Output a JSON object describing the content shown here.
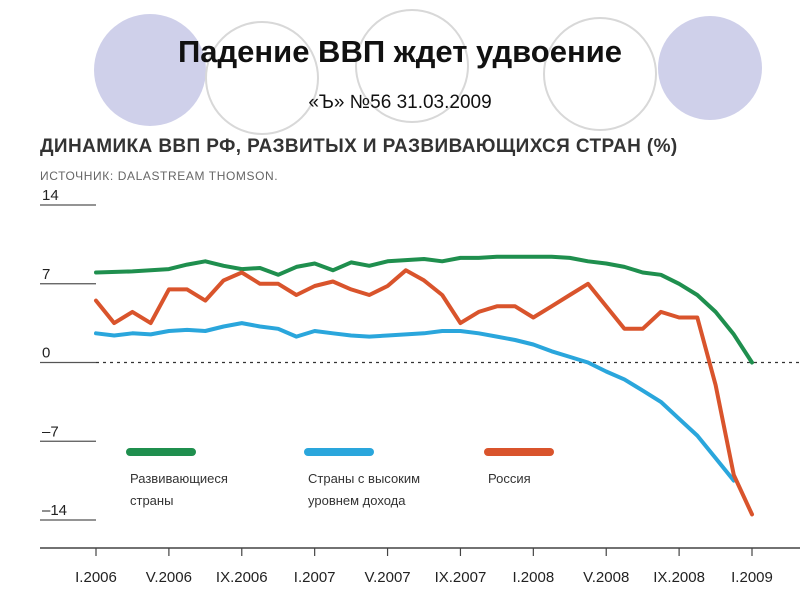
{
  "slide": {
    "title": "Падение ВВП ждет удвоение",
    "subtitle": "«Ъ» №56 31.03.2009"
  },
  "colors": {
    "developing": "#1f8f4e",
    "high_income": "#2aa6dc",
    "russia": "#d9542c",
    "decor_circle": "#cfd0ea"
  },
  "chart_data": {
    "type": "line",
    "title": "ДИНАМИКА ВВП РФ, РАЗВИТЫХ И РАЗВИВАЮЩИХСЯ СТРАН (%)",
    "source": "ИСТОЧНИК: DALASTREAM THOMSON.",
    "x_ticks": [
      "I.2006",
      "V.2006",
      "IX.2006",
      "I.2007",
      "V.2007",
      "IX.2007",
      "I.2008",
      "V.2008",
      "IX.2008",
      "I.2009"
    ],
    "x_range": [
      0,
      36
    ],
    "y_ticks": [
      "14",
      "7",
      "0",
      "–7",
      "–14"
    ],
    "ylim": [
      -14,
      14
    ],
    "zero_line": "dashed",
    "grid": false,
    "legend_position": "bottom-left",
    "series": [
      {
        "name": "Развивающиеся страны",
        "legend_lines": [
          "Развивающиеся",
          "страны"
        ],
        "color_key": "developing",
        "points": [
          [
            0,
            8.0
          ],
          [
            2,
            8.1
          ],
          [
            4,
            8.3
          ],
          [
            5,
            8.7
          ],
          [
            6,
            9.0
          ],
          [
            7,
            8.6
          ],
          [
            8,
            8.3
          ],
          [
            9,
            8.4
          ],
          [
            10,
            7.8
          ],
          [
            11,
            8.5
          ],
          [
            12,
            8.8
          ],
          [
            13,
            8.2
          ],
          [
            14,
            8.9
          ],
          [
            15,
            8.6
          ],
          [
            16,
            9.0
          ],
          [
            17,
            9.1
          ],
          [
            18,
            9.2
          ],
          [
            19,
            9.0
          ],
          [
            20,
            9.3
          ],
          [
            21,
            9.3
          ],
          [
            22,
            9.4
          ],
          [
            23,
            9.4
          ],
          [
            24,
            9.4
          ],
          [
            25,
            9.4
          ],
          [
            26,
            9.3
          ],
          [
            27,
            9.0
          ],
          [
            28,
            8.8
          ],
          [
            29,
            8.5
          ],
          [
            30,
            8.0
          ],
          [
            31,
            7.8
          ],
          [
            32,
            7.0
          ],
          [
            33,
            6.0
          ],
          [
            34,
            4.5
          ],
          [
            35,
            2.5
          ],
          [
            36,
            0.0
          ]
        ]
      },
      {
        "name": "Страны с высоким уровнем дохода",
        "legend_lines": [
          "Страны с высоким",
          "уровнем дохода"
        ],
        "color_key": "high_income",
        "points": [
          [
            0,
            2.6
          ],
          [
            1,
            2.4
          ],
          [
            2,
            2.6
          ],
          [
            3,
            2.5
          ],
          [
            4,
            2.8
          ],
          [
            5,
            2.9
          ],
          [
            6,
            2.8
          ],
          [
            7,
            3.2
          ],
          [
            8,
            3.5
          ],
          [
            9,
            3.2
          ],
          [
            10,
            3.0
          ],
          [
            11,
            2.3
          ],
          [
            12,
            2.8
          ],
          [
            13,
            2.6
          ],
          [
            14,
            2.4
          ],
          [
            15,
            2.3
          ],
          [
            16,
            2.4
          ],
          [
            17,
            2.5
          ],
          [
            18,
            2.6
          ],
          [
            19,
            2.8
          ],
          [
            20,
            2.8
          ],
          [
            21,
            2.6
          ],
          [
            22,
            2.3
          ],
          [
            23,
            2.0
          ],
          [
            24,
            1.6
          ],
          [
            25,
            1.0
          ],
          [
            26,
            0.5
          ],
          [
            27,
            0.0
          ],
          [
            28,
            -0.8
          ],
          [
            29,
            -1.5
          ],
          [
            30,
            -2.5
          ],
          [
            31,
            -3.5
          ],
          [
            32,
            -5.0
          ],
          [
            33,
            -6.5
          ],
          [
            34,
            -8.5
          ],
          [
            35,
            -10.5
          ]
        ]
      },
      {
        "name": "Россия",
        "legend_lines": [
          "Россия"
        ],
        "color_key": "russia",
        "points": [
          [
            0,
            5.5
          ],
          [
            1,
            3.5
          ],
          [
            2,
            4.5
          ],
          [
            3,
            3.5
          ],
          [
            4,
            6.5
          ],
          [
            5,
            6.5
          ],
          [
            6,
            5.5
          ],
          [
            7,
            7.3
          ],
          [
            8,
            8.0
          ],
          [
            9,
            7.0
          ],
          [
            10,
            7.0
          ],
          [
            11,
            6.0
          ],
          [
            12,
            6.8
          ],
          [
            13,
            7.2
          ],
          [
            14,
            6.5
          ],
          [
            15,
            6.0
          ],
          [
            16,
            6.8
          ],
          [
            17,
            8.2
          ],
          [
            18,
            7.3
          ],
          [
            19,
            6.0
          ],
          [
            20,
            3.5
          ],
          [
            21,
            4.5
          ],
          [
            22,
            5.0
          ],
          [
            23,
            5.0
          ],
          [
            24,
            4.0
          ],
          [
            25,
            5.0
          ],
          [
            26,
            6.0
          ],
          [
            27,
            7.0
          ],
          [
            28,
            5.0
          ],
          [
            29,
            3.0
          ],
          [
            30,
            3.0
          ],
          [
            31,
            4.5
          ],
          [
            32,
            4.0
          ],
          [
            33,
            4.0
          ],
          [
            34,
            -2.0
          ],
          [
            35,
            -10.0
          ],
          [
            36,
            -13.5
          ]
        ]
      }
    ]
  }
}
